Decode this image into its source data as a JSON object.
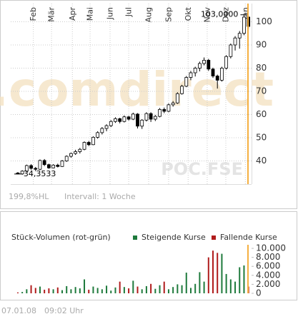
{
  "chart_data": [
    {
      "type": "candlestick",
      "watermark": ".comdirect",
      "symbol": "POC.FSE",
      "range_note": "199,8%HL",
      "interval": "Intervall: 1 Woche",
      "xlim": [
        -1.6,
        52.7
      ],
      "xticks": [
        {
          "value": 3.5,
          "label": "Feb"
        },
        {
          "value": 7.6,
          "label": "Mär"
        },
        {
          "value": 12.3,
          "label": "Apr"
        },
        {
          "value": 16.3,
          "label": "Mai"
        },
        {
          "value": 20.8,
          "label": "Jun"
        },
        {
          "value": 25,
          "label": "Jul"
        },
        {
          "value": 29.5,
          "label": "Aug"
        },
        {
          "value": 34,
          "label": "Sep"
        },
        {
          "value": 38.4,
          "label": "Okt"
        },
        {
          "value": 42.7,
          "label": "Nov"
        },
        {
          "value": 46.9,
          "label": "Dez"
        },
        {
          "value": 51.3,
          "label": "Jan"
        }
      ],
      "ylim": [
        30,
        106.3
      ],
      "yticks": [
        40,
        50,
        60,
        70,
        80,
        90,
        100
      ],
      "grid": true,
      "up_color": "#ffffff",
      "down_color": "#000000",
      "open": [
        34.8,
        34.4,
        35.6,
        38.0,
        36.8,
        36.4,
        40.2,
        38.4,
        37.0,
        38.2,
        37.6,
        40.0,
        42.0,
        43.2,
        44.0,
        45.0,
        48.0,
        47.0,
        50.2,
        52.2,
        54.0,
        55.2,
        57.0,
        58.2,
        57.0,
        59.0,
        58.0,
        60.2,
        55.0,
        57.6,
        60.4,
        58.0,
        59.2,
        62.2,
        61.4,
        64.2,
        65.0,
        69.0,
        72.2,
        76.0,
        78.0,
        80.0,
        82.0,
        83.4,
        79.6,
        76.6,
        74.8,
        80.0,
        85.0,
        90.0,
        93.0,
        95.0,
        102.0
      ],
      "high": [
        35.2,
        36.0,
        38.4,
        38.6,
        37.4,
        40.6,
        40.8,
        38.8,
        38.6,
        38.8,
        40.4,
        42.4,
        43.6,
        44.8,
        45.6,
        48.4,
        48.6,
        50.6,
        52.8,
        54.6,
        55.8,
        57.6,
        58.8,
        58.6,
        59.6,
        59.4,
        60.8,
        60.6,
        58.0,
        61.0,
        61.0,
        59.8,
        62.8,
        63.0,
        64.8,
        65.8,
        69.6,
        72.8,
        76.6,
        78.8,
        80.6,
        82.8,
        84.6,
        84.0,
        80.2,
        77.2,
        80.6,
        85.6,
        90.6,
        93.8,
        96.0,
        103.0,
        102.6
      ],
      "low": [
        34.3533,
        34.0,
        35.2,
        36.2,
        35.6,
        36.0,
        37.8,
        36.6,
        36.8,
        37.2,
        37.4,
        39.6,
        41.4,
        42.6,
        43.2,
        44.6,
        46.4,
        46.8,
        49.6,
        51.4,
        52.8,
        54.6,
        56.4,
        56.2,
        56.6,
        57.4,
        57.6,
        54.0,
        53.8,
        57.0,
        56.8,
        57.2,
        58.8,
        60.6,
        61.0,
        63.4,
        64.6,
        68.6,
        71.8,
        74.8,
        76.4,
        78.6,
        81.2,
        78.8,
        75.8,
        71.2,
        74.2,
        79.4,
        84.2,
        87.6,
        88.4,
        94.2,
        97.0
      ],
      "close": [
        34.4,
        35.6,
        38.0,
        36.8,
        36.4,
        40.2,
        38.4,
        37.0,
        38.2,
        37.6,
        40.0,
        42.0,
        43.2,
        44.0,
        45.0,
        48.0,
        47.0,
        50.2,
        52.2,
        54.0,
        55.2,
        57.0,
        58.2,
        57.0,
        59.0,
        58.0,
        60.2,
        55.0,
        57.6,
        60.4,
        58.0,
        59.2,
        62.2,
        61.4,
        64.2,
        65.0,
        69.0,
        72.2,
        76.0,
        78.0,
        80.0,
        82.0,
        83.4,
        79.6,
        76.6,
        74.8,
        80.0,
        85.0,
        90.0,
        93.0,
        95.0,
        102.0,
        98.0
      ],
      "annotations": [
        {
          "x": 51,
          "value": 103,
          "label": "103,0000"
        },
        {
          "x": 0,
          "value": 34.3533,
          "label": "34,3533"
        }
      ]
    },
    {
      "type": "bar",
      "title": "Stück-Volumen (rot-grün)",
      "xlim": [
        -1.6,
        52.7
      ],
      "ylim": [
        0,
        10800
      ],
      "yticks": [
        0,
        {
          "value": 2000,
          "label": "2.000"
        },
        {
          "value": 4000,
          "label": "4.000"
        },
        {
          "value": 6000,
          "label": "6.000"
        },
        {
          "value": 8000,
          "label": "8.000"
        },
        {
          "value": 10000,
          "label": "10.000"
        }
      ],
      "series": [
        {
          "name": "Steigende Kurse",
          "color": "#1e7a3c",
          "values": [
            null,
            300,
            900,
            null,
            null,
            1500,
            null,
            null,
            900,
            null,
            700,
            1600,
            900,
            1400,
            1100,
            3100,
            null,
            1500,
            1200,
            900,
            1700,
            600,
            1300,
            null,
            1400,
            null,
            2800,
            null,
            900,
            1600,
            null,
            1000,
            1800,
            null,
            900,
            1400,
            2000,
            1800,
            4600,
            1200,
            2100,
            4700,
            2600,
            null,
            null,
            null,
            8800,
            4300,
            3100,
            2600,
            5800,
            6200,
            null
          ]
        },
        {
          "name": "Fallende Kurse",
          "color": "#b01c1c",
          "values": [
            200,
            null,
            null,
            1800,
            1200,
            null,
            800,
            1100,
            null,
            1300,
            null,
            null,
            null,
            null,
            null,
            null,
            800,
            null,
            null,
            null,
            null,
            null,
            null,
            2600,
            null,
            1100,
            null,
            1500,
            null,
            null,
            2100,
            null,
            null,
            2600,
            null,
            null,
            null,
            null,
            null,
            null,
            null,
            null,
            null,
            8000,
            9500,
            9000,
            null,
            null,
            null,
            null,
            null,
            null,
            1500
          ]
        }
      ]
    }
  ],
  "footer": {
    "date": "07.01.08",
    "time": "09:02 Uhr"
  }
}
